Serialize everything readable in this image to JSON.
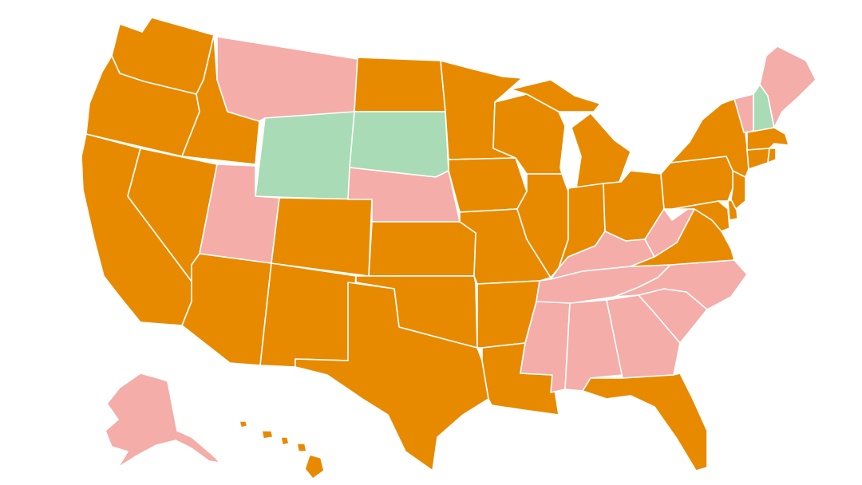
{
  "map": {
    "colors": {
      "orange": "#E88A00",
      "pink": "#F4ADA8",
      "green": "#A8DBB6",
      "border": "#FFFFFF",
      "background": "#FFFFFF"
    },
    "states": [
      {
        "id": "WA",
        "category": "orange"
      },
      {
        "id": "OR",
        "category": "orange"
      },
      {
        "id": "CA",
        "category": "orange"
      },
      {
        "id": "NV",
        "category": "orange"
      },
      {
        "id": "ID",
        "category": "orange"
      },
      {
        "id": "MT",
        "category": "pink"
      },
      {
        "id": "WY",
        "category": "green"
      },
      {
        "id": "UT",
        "category": "pink"
      },
      {
        "id": "AZ",
        "category": "orange"
      },
      {
        "id": "CO",
        "category": "orange"
      },
      {
        "id": "NM",
        "category": "orange"
      },
      {
        "id": "ND",
        "category": "orange"
      },
      {
        "id": "SD",
        "category": "green"
      },
      {
        "id": "NE",
        "category": "pink"
      },
      {
        "id": "KS",
        "category": "orange"
      },
      {
        "id": "OK",
        "category": "orange"
      },
      {
        "id": "TX",
        "category": "orange"
      },
      {
        "id": "MN",
        "category": "orange"
      },
      {
        "id": "IA",
        "category": "orange"
      },
      {
        "id": "MO",
        "category": "orange"
      },
      {
        "id": "AR",
        "category": "orange"
      },
      {
        "id": "LA",
        "category": "orange"
      },
      {
        "id": "WI",
        "category": "orange"
      },
      {
        "id": "IL",
        "category": "orange"
      },
      {
        "id": "MI",
        "category": "orange"
      },
      {
        "id": "IN",
        "category": "orange"
      },
      {
        "id": "OH",
        "category": "orange"
      },
      {
        "id": "KY",
        "category": "pink"
      },
      {
        "id": "TN",
        "category": "pink"
      },
      {
        "id": "MS",
        "category": "pink"
      },
      {
        "id": "AL",
        "category": "pink"
      },
      {
        "id": "GA",
        "category": "pink"
      },
      {
        "id": "FL",
        "category": "orange"
      },
      {
        "id": "SC",
        "category": "pink"
      },
      {
        "id": "NC",
        "category": "pink"
      },
      {
        "id": "VA",
        "category": "orange"
      },
      {
        "id": "WV",
        "category": "pink"
      },
      {
        "id": "PA",
        "category": "orange"
      },
      {
        "id": "NY",
        "category": "orange"
      },
      {
        "id": "VT",
        "category": "pink"
      },
      {
        "id": "NH",
        "category": "green"
      },
      {
        "id": "ME",
        "category": "pink"
      },
      {
        "id": "MA",
        "category": "orange"
      },
      {
        "id": "RI",
        "category": "orange"
      },
      {
        "id": "CT",
        "category": "orange"
      },
      {
        "id": "NJ",
        "category": "orange"
      },
      {
        "id": "DE",
        "category": "orange"
      },
      {
        "id": "MD",
        "category": "orange"
      },
      {
        "id": "AK",
        "category": "pink"
      },
      {
        "id": "HI",
        "category": "orange"
      }
    ]
  }
}
